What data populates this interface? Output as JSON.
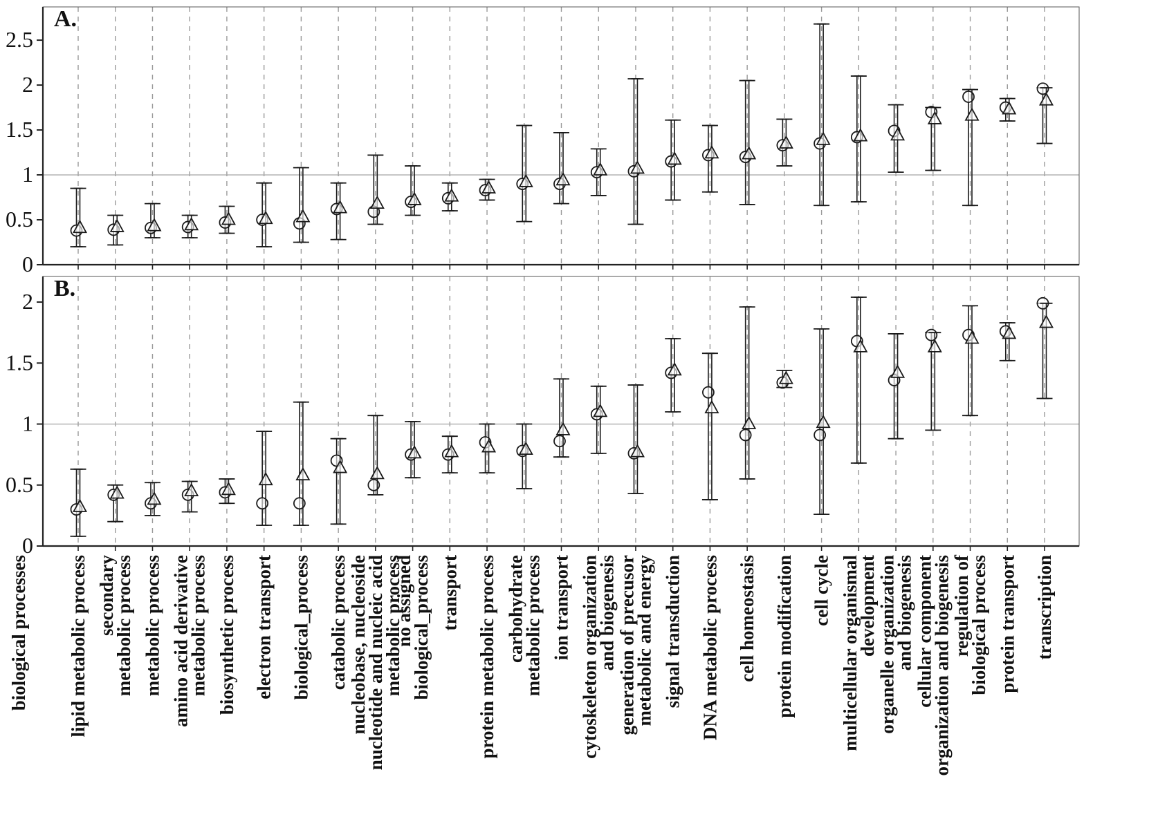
{
  "figure": {
    "y_axis_label": "biological processes",
    "marker_color": "#1a1a1a",
    "grid_color": "#999999",
    "reference_line_color": "#aaaaaa",
    "panel_labels": [
      "A.",
      "B."
    ]
  },
  "categories": [
    "lipid metabolic process",
    "secondary metabolic process",
    "metabolic process",
    "amino acid derivative metabolic process",
    "biosynthetic process",
    "electron transport",
    "biological_process",
    "catabolic process",
    "nucleobase, nucleoside nucleotide and nucleic acid metabolic process",
    "no assigned biological_process",
    "transport",
    "protein metabolic process",
    "carbohydrate metabolic process",
    "ion transport",
    "cytoskeleton organization and biogenesis",
    "generation of precusor metabolic and energy",
    "signal transduction",
    "DNA metabolic process",
    "cell homeostasis",
    "protein modification",
    "cell cycle",
    "multicellular organismal development",
    "organelle organization and biogenesis",
    "cellular component organization and biogenesis",
    "regulation of biological process",
    "protein transport",
    "transcription"
  ],
  "category_label_lines": [
    [
      "lipid metabolic process"
    ],
    [
      "secondary",
      "metabolic process"
    ],
    [
      "metabolic process"
    ],
    [
      "amino acid derivative",
      "metabolic process"
    ],
    [
      "biosynthetic process"
    ],
    [
      "electron transport"
    ],
    [
      "biological_process"
    ],
    [
      "catabolic process"
    ],
    [
      "nucleobase, nucleoside",
      "nucleotide and nucleic acid",
      "metabolic process"
    ],
    [
      "no assigned",
      "biological_process"
    ],
    [
      "transport"
    ],
    [
      "protein metabolic process"
    ],
    [
      "carbohydrate",
      "metabolic process"
    ],
    [
      "ion transport"
    ],
    [
      "cytoskeleton organization",
      "and biogenesis"
    ],
    [
      "generation of precusor",
      "metabolic and energy"
    ],
    [
      "signal transduction"
    ],
    [
      "DNA metabolic process"
    ],
    [
      "cell homeostasis"
    ],
    [
      "protein modification"
    ],
    [
      "cell cycle"
    ],
    [
      "multicellular organismal",
      "development"
    ],
    [
      "organelle organization",
      "and biogenesis"
    ],
    [
      "cellular component",
      "organization and biogenesis"
    ],
    [
      "regulation of",
      "biological process"
    ],
    [
      "protein transport"
    ],
    [
      "transcription"
    ]
  ],
  "chart_data": [
    {
      "panel": "A",
      "type": "scatter",
      "title": "",
      "xlabel": "",
      "ylabel": "",
      "ylim": [
        0,
        2.87
      ],
      "yticks": [
        0,
        0.5,
        1,
        1.5,
        2,
        2.5
      ],
      "reference_line_y": 1,
      "grid": "vertical-dashed",
      "legend_position": "none",
      "series": [
        {
          "name": "circle-series",
          "marker": "circle",
          "values": [
            0.38,
            0.39,
            0.41,
            0.42,
            0.47,
            0.5,
            0.46,
            0.62,
            0.59,
            0.7,
            0.74,
            0.83,
            0.9,
            0.9,
            1.03,
            1.04,
            1.15,
            1.22,
            1.2,
            1.33,
            1.35,
            1.42,
            1.49,
            1.7,
            1.87,
            1.75,
            1.96
          ],
          "err_lo": [
            0.2,
            0.22,
            0.3,
            0.3,
            0.35,
            0.2,
            0.25,
            0.28,
            0.45,
            0.55,
            0.6,
            0.72,
            0.48,
            0.68,
            0.77,
            0.45,
            0.72,
            0.81,
            0.67,
            1.1,
            0.66,
            0.7,
            1.03,
            1.05,
            0.66,
            1.6,
            1.35
          ],
          "err_hi": [
            0.85,
            0.55,
            0.68,
            0.55,
            0.65,
            0.91,
            1.08,
            0.91,
            1.22,
            1.1,
            0.91,
            0.95,
            1.55,
            1.47,
            1.29,
            2.07,
            1.61,
            1.55,
            2.05,
            1.62,
            2.68,
            2.1,
            1.78,
            1.75,
            1.95,
            1.85,
            1.97
          ]
        },
        {
          "name": "triangle-series",
          "marker": "triangle",
          "values": [
            0.41,
            0.42,
            0.43,
            0.44,
            0.5,
            0.51,
            0.53,
            0.63,
            0.68,
            0.72,
            0.76,
            0.85,
            0.92,
            0.94,
            1.05,
            1.07,
            1.17,
            1.24,
            1.23,
            1.35,
            1.39,
            1.43,
            1.44,
            1.62,
            1.66,
            1.73,
            1.83
          ],
          "err_lo": [
            0.2,
            0.22,
            0.3,
            0.3,
            0.35,
            0.2,
            0.25,
            0.28,
            0.45,
            0.55,
            0.6,
            0.72,
            0.48,
            0.68,
            0.77,
            0.45,
            0.72,
            0.81,
            0.67,
            1.1,
            0.66,
            0.7,
            1.03,
            1.05,
            0.66,
            1.6,
            1.35
          ],
          "err_hi": [
            0.85,
            0.55,
            0.68,
            0.55,
            0.65,
            0.91,
            1.08,
            0.91,
            1.22,
            1.1,
            0.91,
            0.95,
            1.55,
            1.47,
            1.29,
            2.07,
            1.61,
            1.55,
            2.05,
            1.62,
            2.68,
            2.1,
            1.78,
            1.75,
            1.95,
            1.85,
            1.97
          ]
        }
      ]
    },
    {
      "panel": "B",
      "type": "scatter",
      "title": "",
      "xlabel": "",
      "ylabel": "",
      "ylim": [
        0,
        2.21
      ],
      "yticks": [
        0,
        0.5,
        1,
        1.5,
        2
      ],
      "reference_line_y": 1,
      "grid": "vertical-dashed",
      "legend_position": "none",
      "series": [
        {
          "name": "circle-series",
          "marker": "circle",
          "values": [
            0.3,
            0.42,
            0.35,
            0.42,
            0.44,
            0.35,
            0.35,
            0.7,
            0.5,
            0.75,
            0.75,
            0.85,
            0.78,
            0.86,
            1.08,
            0.76,
            1.42,
            1.26,
            0.91,
            1.34,
            0.91,
            1.68,
            1.36,
            1.73,
            1.73,
            1.76,
            1.99
          ],
          "err_lo": [
            0.08,
            0.2,
            0.25,
            0.28,
            0.35,
            0.17,
            0.17,
            0.18,
            0.42,
            0.56,
            0.6,
            0.6,
            0.47,
            0.73,
            0.76,
            0.43,
            1.1,
            0.38,
            0.55,
            1.3,
            0.26,
            0.68,
            0.88,
            0.95,
            1.07,
            1.52,
            1.21
          ],
          "err_hi": [
            0.63,
            0.5,
            0.52,
            0.53,
            0.55,
            0.94,
            1.18,
            0.88,
            1.07,
            1.02,
            0.9,
            1.0,
            1.0,
            1.37,
            1.31,
            1.32,
            1.7,
            1.58,
            1.96,
            1.44,
            1.78,
            2.04,
            1.74,
            1.75,
            1.97,
            1.83,
            1.99
          ]
        },
        {
          "name": "triangle-series",
          "marker": "triangle",
          "values": [
            0.32,
            0.43,
            0.38,
            0.45,
            0.46,
            0.54,
            0.58,
            0.64,
            0.59,
            0.76,
            0.77,
            0.81,
            0.79,
            0.95,
            1.1,
            0.77,
            1.44,
            1.13,
            1.0,
            1.37,
            1.01,
            1.63,
            1.42,
            1.63,
            1.7,
            1.74,
            1.83
          ],
          "err_lo": [
            0.08,
            0.2,
            0.25,
            0.28,
            0.35,
            0.17,
            0.17,
            0.18,
            0.42,
            0.56,
            0.6,
            0.6,
            0.47,
            0.73,
            0.76,
            0.43,
            1.1,
            0.38,
            0.55,
            1.3,
            0.26,
            0.68,
            0.88,
            0.95,
            1.07,
            1.52,
            1.21
          ],
          "err_hi": [
            0.63,
            0.5,
            0.52,
            0.53,
            0.55,
            0.94,
            1.18,
            0.88,
            1.07,
            1.02,
            0.9,
            1.0,
            1.0,
            1.37,
            1.31,
            1.32,
            1.7,
            1.58,
            1.96,
            1.44,
            1.78,
            2.04,
            1.74,
            1.75,
            1.97,
            1.83,
            1.99
          ]
        }
      ]
    }
  ]
}
